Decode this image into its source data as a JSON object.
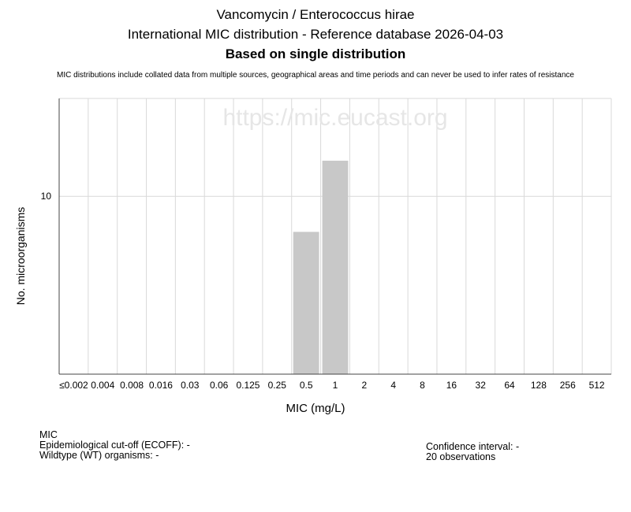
{
  "title": "Vancomycin / Enterococcus hirae",
  "subtitle": "International MIC distribution - Reference database 2026-04-03",
  "subtitle2": "Based on single distribution",
  "disclaimer": "MIC distributions include collated data from multiple sources, geographical areas and time periods and can never be used to infer rates of resistance",
  "watermark": "https://mic.eucast.org",
  "info": {
    "mic_label": "MIC",
    "ecoff": "Epidemiological cut-off (ECOFF): -",
    "wildtype": "Wildtype (WT) organisms:  -",
    "confidence": "Confidence interval: -",
    "observations": "20 observations"
  },
  "colors": {
    "bar": "#c8c8c8",
    "grid": "#d9d9d9",
    "axis": "#444444",
    "watermark": "#e6e6e6"
  },
  "chart_data": {
    "type": "bar",
    "categories": [
      "≤0.002",
      "0.004",
      "0.008",
      "0.016",
      "0.03",
      "0.06",
      "0.125",
      "0.25",
      "0.5",
      "1",
      "2",
      "4",
      "8",
      "16",
      "32",
      "64",
      "128",
      "256",
      "512"
    ],
    "values": [
      0,
      0,
      0,
      0,
      0,
      0,
      0,
      0,
      8,
      12,
      0,
      0,
      0,
      0,
      0,
      0,
      0,
      0,
      0
    ],
    "xlabel": "MIC (mg/L)",
    "ylabel": "No. microorganisms",
    "ylim": [
      0,
      15.5
    ],
    "yticks": [
      10
    ],
    "grid": true,
    "legend": "none"
  }
}
